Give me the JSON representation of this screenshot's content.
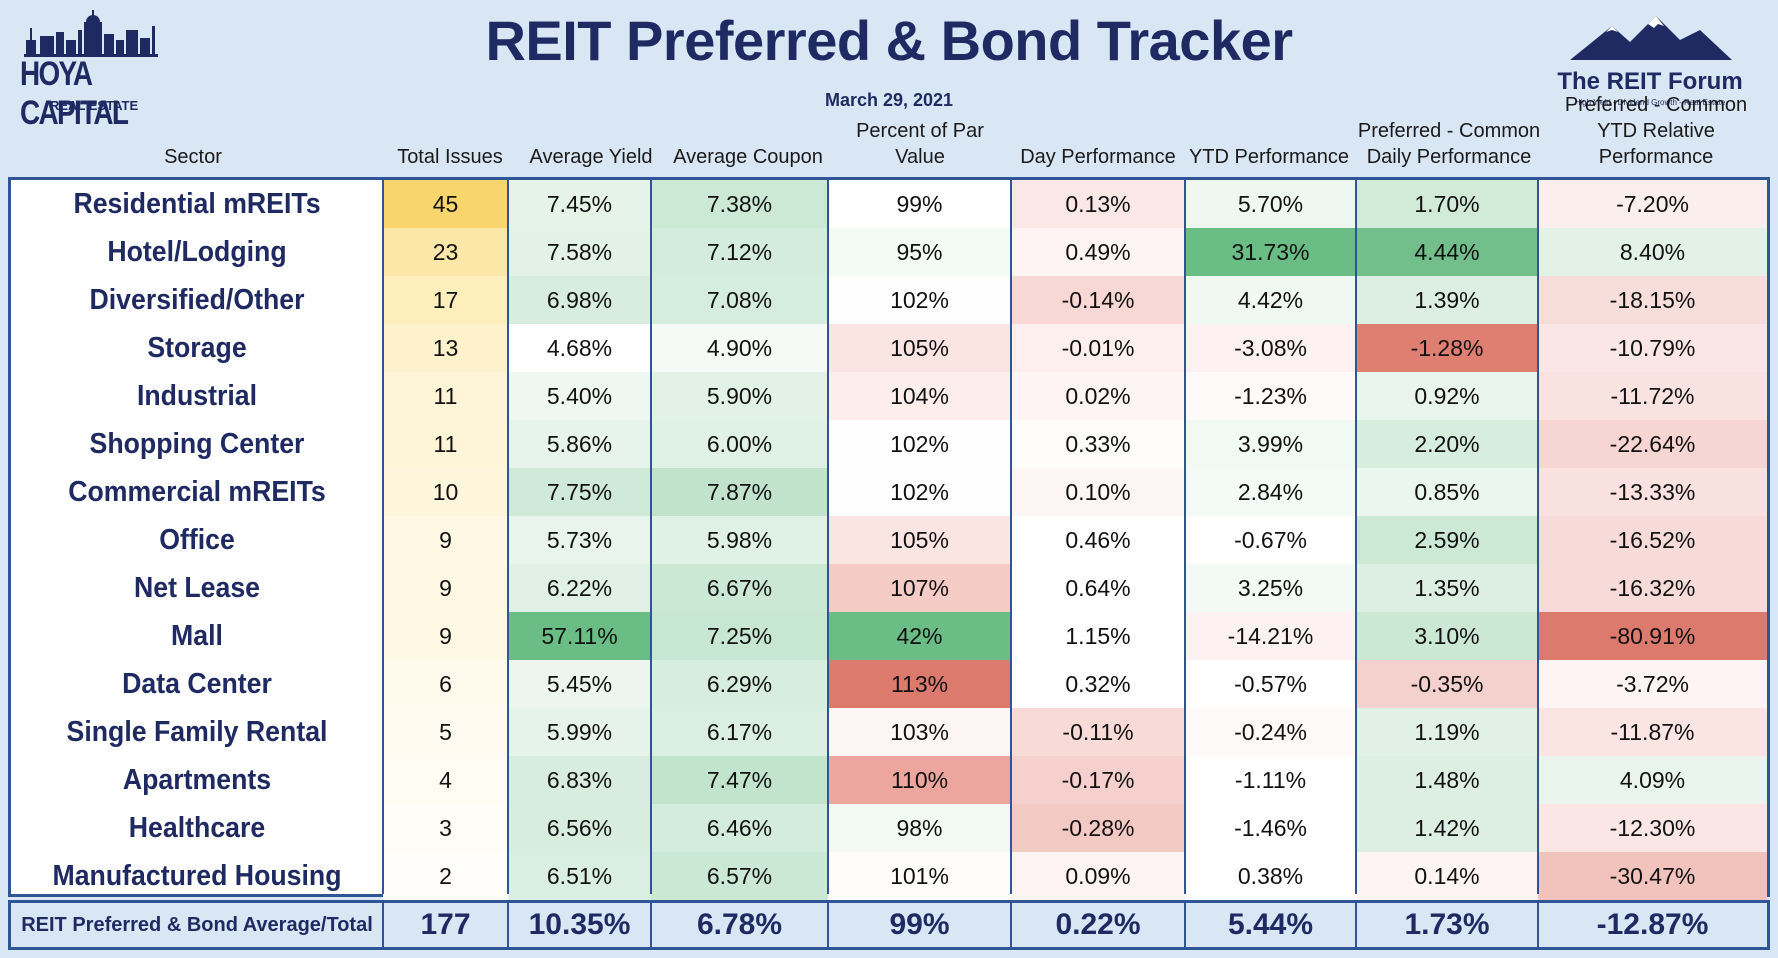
{
  "header": {
    "title": "REIT Preferred & Bond Tracker",
    "date": "March 29, 2021",
    "logo_left_name": "HOYA CAPITAL",
    "logo_left_sub": "REAL ESTATE",
    "logo_right_name": "The REIT Forum",
    "logo_right_tag": "High Yield - Dividend Growth - Real Estate"
  },
  "columns": [
    "Sector",
    "Total Issues",
    "Average Yield",
    "Average Coupon",
    "Percent of Par Value",
    "Day Performance",
    "YTD Performance",
    "Preferred - Common Daily Performance",
    "Preferred - Common YTD Relative Performance"
  ],
  "chart_data": {
    "type": "table",
    "title": "REIT Preferred & Bond Tracker",
    "rows": [
      {
        "sector": "Residential mREITs",
        "values": [
          "45",
          "7.45%",
          "7.38%",
          "99%",
          "0.13%",
          "5.70%",
          "1.70%",
          "-7.20%"
        ]
      },
      {
        "sector": "Hotel/Lodging",
        "values": [
          "23",
          "7.58%",
          "7.12%",
          "95%",
          "0.49%",
          "31.73%",
          "4.44%",
          "8.40%"
        ]
      },
      {
        "sector": "Diversified/Other",
        "values": [
          "17",
          "6.98%",
          "7.08%",
          "102%",
          "-0.14%",
          "4.42%",
          "1.39%",
          "-18.15%"
        ]
      },
      {
        "sector": "Storage",
        "values": [
          "13",
          "4.68%",
          "4.90%",
          "105%",
          "-0.01%",
          "-3.08%",
          "-1.28%",
          "-10.79%"
        ]
      },
      {
        "sector": "Industrial",
        "values": [
          "11",
          "5.40%",
          "5.90%",
          "104%",
          "0.02%",
          "-1.23%",
          "0.92%",
          "-11.72%"
        ]
      },
      {
        "sector": "Shopping Center",
        "values": [
          "11",
          "5.86%",
          "6.00%",
          "102%",
          "0.33%",
          "3.99%",
          "2.20%",
          "-22.64%"
        ]
      },
      {
        "sector": "Commercial mREITs",
        "values": [
          "10",
          "7.75%",
          "7.87%",
          "102%",
          "0.10%",
          "2.84%",
          "0.85%",
          "-13.33%"
        ]
      },
      {
        "sector": "Office",
        "values": [
          "9",
          "5.73%",
          "5.98%",
          "105%",
          "0.46%",
          "-0.67%",
          "2.59%",
          "-16.52%"
        ]
      },
      {
        "sector": "Net Lease",
        "values": [
          "9",
          "6.22%",
          "6.67%",
          "107%",
          "0.64%",
          "3.25%",
          "1.35%",
          "-16.32%"
        ]
      },
      {
        "sector": "Mall",
        "values": [
          "9",
          "57.11%",
          "7.25%",
          "42%",
          "1.15%",
          "-14.21%",
          "3.10%",
          "-80.91%"
        ]
      },
      {
        "sector": "Data Center",
        "values": [
          "6",
          "5.45%",
          "6.29%",
          "113%",
          "0.32%",
          "-0.57%",
          "-0.35%",
          "-3.72%"
        ]
      },
      {
        "sector": "Single Family Rental",
        "values": [
          "5",
          "5.99%",
          "6.17%",
          "103%",
          "-0.11%",
          "-0.24%",
          "1.19%",
          "-11.87%"
        ]
      },
      {
        "sector": "Apartments",
        "values": [
          "4",
          "6.83%",
          "7.47%",
          "110%",
          "-0.17%",
          "-1.11%",
          "1.48%",
          "4.09%"
        ]
      },
      {
        "sector": "Healthcare",
        "values": [
          "3",
          "6.56%",
          "6.46%",
          "98%",
          "-0.28%",
          "-1.46%",
          "1.42%",
          "-12.30%"
        ]
      },
      {
        "sector": "Manufactured Housing",
        "values": [
          "2",
          "6.51%",
          "6.57%",
          "101%",
          "0.09%",
          "0.38%",
          "0.14%",
          "-30.47%"
        ]
      }
    ],
    "footer": {
      "label": "REIT Preferred & Bond Average/Total",
      "values": [
        "177",
        "10.35%",
        "6.78%",
        "99%",
        "0.22%",
        "5.44%",
        "1.73%",
        "-12.87%"
      ]
    },
    "cell_colors": [
      [
        "#f9d56e",
        "#e5f3e9",
        "#cce9d6",
        "#ffffff",
        "#fbe7e5",
        "#eef7f0",
        "#d2ebd9",
        "#fbefed"
      ],
      [
        "#fce6a8",
        "#e3f2e7",
        "#d4ecdd",
        "#f4faf6",
        "#fdf4f3",
        "#6bbd86",
        "#72bf8b",
        "#e2f2e7"
      ],
      [
        "#fdeebc",
        "#d8eddf",
        "#d5edde",
        "#fefefe",
        "#f8d7d4",
        "#f0f8f2",
        "#dcefe2",
        "#f8dedb"
      ],
      [
        "#fef2cd",
        "#ffffff",
        "#f5faf6",
        "#fbe5e3",
        "#fcefee",
        "#fdf2f1",
        "#df7f72",
        "#fae6e4"
      ],
      [
        "#fef5d8",
        "#eef7f1",
        "#e2f2e7",
        "#fdeeec",
        "#fdf4f3",
        "#fefafa",
        "#e9f5ec",
        "#f9e3e1"
      ],
      [
        "#fef5d8",
        "#e7f4eb",
        "#e0f1e5",
        "#fefefe",
        "#fffcfc",
        "#f1f9f3",
        "#d7edde",
        "#f6d5d2"
      ],
      [
        "#fef6dc",
        "#cfead8",
        "#c1e3cc",
        "#fefefe",
        "#fdf6f5",
        "#f4faf6",
        "#ebf6ef",
        "#f8e1de"
      ],
      [
        "#fff8e4",
        "#e8f4ec",
        "#e0f1e5",
        "#fbe5e3",
        "#ffffff",
        "#ffffff",
        "#cce9d6",
        "#f7dbd8"
      ],
      [
        "#fff8e4",
        "#e0f0e5",
        "#cbe8d4",
        "#f5cbc6",
        "#ffffff",
        "#f3f9f5",
        "#ddefe3",
        "#f7dbd8"
      ],
      [
        "#fff8e4",
        "#6bbd86",
        "#c8e7d2",
        "#6bbd86",
        "#ffffff",
        "#fdf2f1",
        "#cbe8d5",
        "#db7a6d"
      ],
      [
        "#fffaec",
        "#ecf6ef",
        "#d7edde",
        "#db7a6d",
        "#ffffff",
        "#ffffff",
        "#f5d1cd",
        "#fdf4f3"
      ],
      [
        "#fffbf0",
        "#e6f3ea",
        "#dbeee2",
        "#fdf6f5",
        "#f8dad7",
        "#fefafa",
        "#e1f1e6",
        "#fae5e3"
      ],
      [
        "#fffcf3",
        "#d8eddf",
        "#c2e4cd",
        "#eda69d",
        "#f6d0cc",
        "#ffffff",
        "#dcefe2",
        "#e9f5ec"
      ],
      [
        "#fffdf7",
        "#d9eddf",
        "#d3ecdb",
        "#f3f9f5",
        "#f3c9c4",
        "#ffffff",
        "#ddefe3",
        "#fae6e4"
      ],
      [
        "#fffefb",
        "#dbeee2",
        "#cbe8d4",
        "#fffcfc",
        "#fdf3f2",
        "#ffffff",
        "#fdf4f3",
        "#f2c2bc"
      ]
    ]
  }
}
